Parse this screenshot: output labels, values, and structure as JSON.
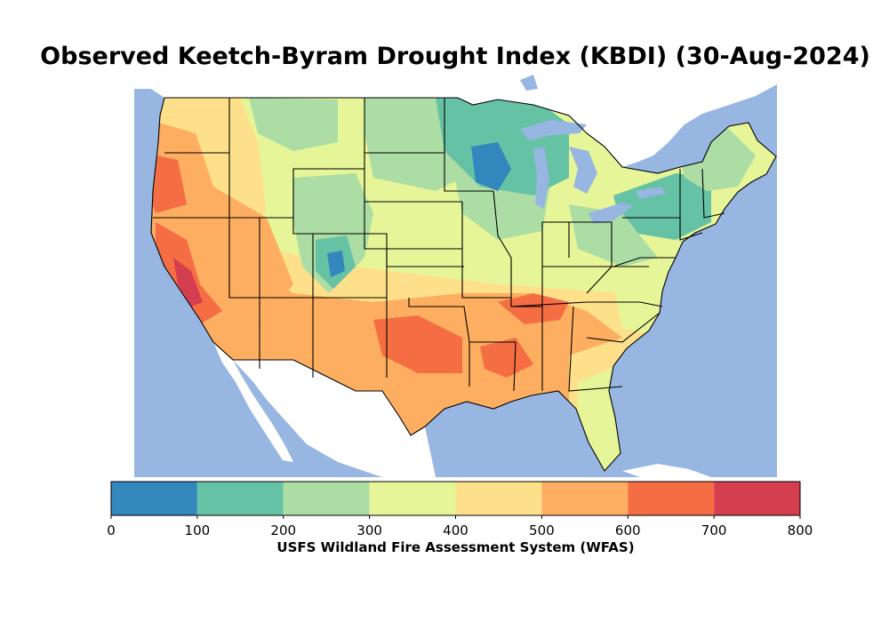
{
  "title": "Observed Keetch-Byram Drought Index (KBDI) (30-Aug-2024)",
  "colorbar": {
    "label": "USFS Wildland Fire Assessment System (WFAS)",
    "ticks": [
      "0",
      "100",
      "200",
      "300",
      "400",
      "500",
      "600",
      "700",
      "800"
    ],
    "colors": [
      "#3288bd",
      "#66c2a5",
      "#abdda4",
      "#e6f598",
      "#fee08b",
      "#fdae61",
      "#f46d43",
      "#d53e4f"
    ]
  },
  "map": {
    "water_color": "#97b6e1",
    "land_outside_color": "#ffffff"
  }
}
